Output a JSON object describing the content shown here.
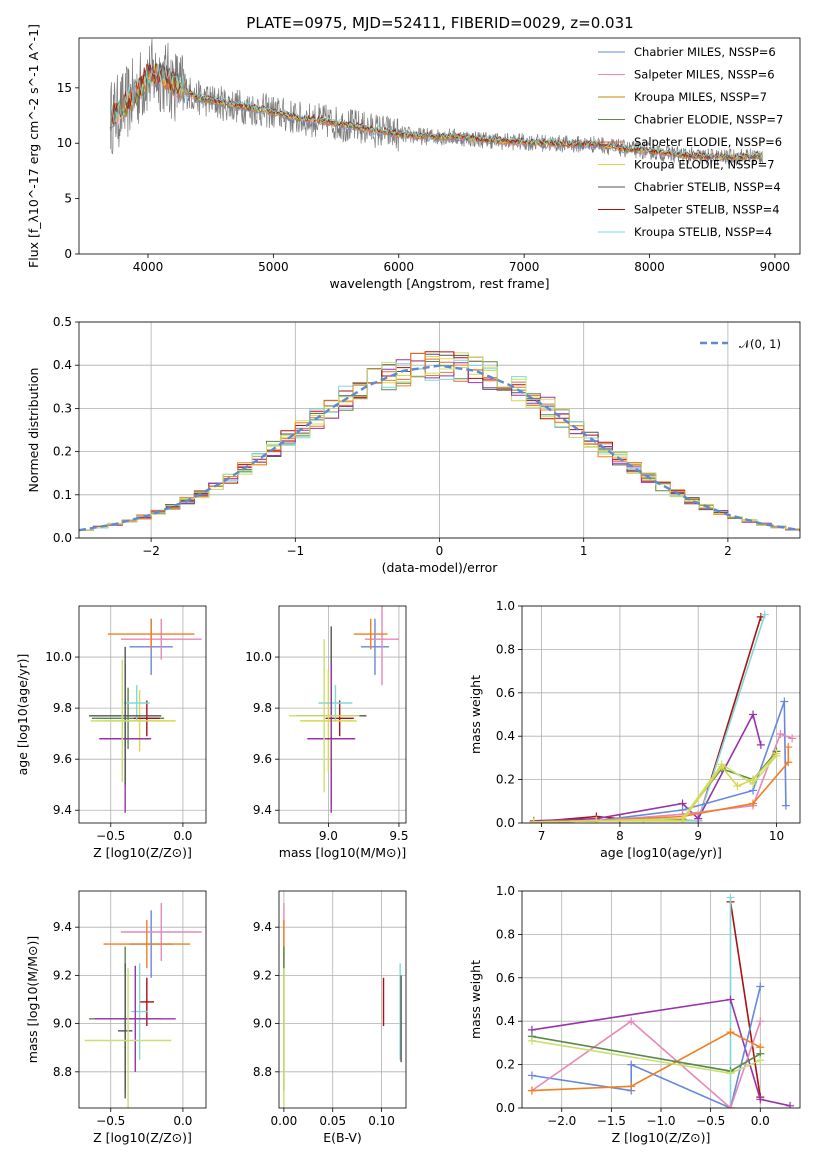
{
  "figure": {
    "title": "PLATE=0975, MJD=52411, FIBERID=0029, z=0.031"
  },
  "colors": [
    "#6688dd",
    "#e688b8",
    "#c8860d",
    "#5a8a4a",
    "#e06a3a",
    "#d8d84a",
    "#555555",
    "#aa1111",
    "#80d8d8",
    "#9933aa",
    "#f07f20",
    "#c8e070"
  ],
  "chart_data": [
    {
      "type": "line",
      "title": "PLATE=0975, MJD=52411, FIBERID=0029, z=0.031",
      "xlabel": "wavelength [Angstrom, rest frame]",
      "ylabel": "Flux [f_λ10^-17 erg cm^-2 s^-1 A^-1]",
      "xlim": [
        3450,
        9200
      ],
      "ylim": [
        0,
        19.5
      ],
      "xticks": [
        4000,
        5000,
        6000,
        7000,
        8000,
        9000
      ],
      "yticks": [
        0,
        5,
        10,
        15
      ],
      "grid": false,
      "legend_position": "top-right",
      "observed_spectrum": [
        [
          3700,
          12.3
        ],
        [
          3800,
          13.2
        ],
        [
          3900,
          14.5
        ],
        [
          4000,
          16.0
        ],
        [
          4100,
          16.2
        ],
        [
          4200,
          15.4
        ],
        [
          4400,
          14.1
        ],
        [
          4600,
          13.6
        ],
        [
          4800,
          13.2
        ],
        [
          5000,
          12.8
        ],
        [
          5200,
          12.2
        ],
        [
          5400,
          12.0
        ],
        [
          5600,
          11.6
        ],
        [
          5800,
          11.2
        ],
        [
          6000,
          10.8
        ],
        [
          6200,
          10.6
        ],
        [
          6400,
          10.6
        ],
        [
          6600,
          10.4
        ],
        [
          6800,
          10.2
        ],
        [
          7000,
          10.1
        ],
        [
          7200,
          10.0
        ],
        [
          7400,
          9.9
        ],
        [
          7600,
          9.9
        ],
        [
          7800,
          9.5
        ],
        [
          8000,
          9.3
        ],
        [
          8200,
          9.0
        ],
        [
          8400,
          8.8
        ],
        [
          8600,
          8.7
        ],
        [
          8800,
          8.8
        ],
        [
          8900,
          8.9
        ]
      ],
      "series": [
        {
          "name": "Chabrier MILES, N_SSP=6",
          "color": "#6688dd"
        },
        {
          "name": "Salpeter MILES, N_SSP=6",
          "color": "#e688b8"
        },
        {
          "name": "Kroupa MILES, N_SSP=7",
          "color": "#c8860d"
        },
        {
          "name": "Chabrier ELODIE, N_SSP=7",
          "color": "#5a8a4a"
        },
        {
          "name": "Salpeter ELODIE, N_SSP=6",
          "color": "#e06a3a"
        },
        {
          "name": "Kroupa ELODIE, N_SSP=7",
          "color": "#d8d84a"
        },
        {
          "name": "Chabrier STELIB, N_SSP=4",
          "color": "#555555"
        },
        {
          "name": "Salpeter STELIB, N_SSP=4",
          "color": "#aa1111"
        },
        {
          "name": "Kroupa STELIB, N_SSP=4",
          "color": "#80d8d8"
        }
      ]
    },
    {
      "type": "line",
      "xlabel": "(data-model)/error",
      "ylabel": "Normed distribution",
      "xlim": [
        -2.5,
        2.5
      ],
      "ylim": [
        0,
        0.5
      ],
      "xticks": [
        -2,
        -1,
        0,
        1,
        2
      ],
      "yticks": [
        0.0,
        0.1,
        0.2,
        0.3,
        0.4,
        0.5
      ],
      "grid": true,
      "legend_position": "top-right",
      "series": [
        {
          "name": "𝒩(0, 1)",
          "color": "#5b8bd0",
          "style": "dashed",
          "x": [
            -2.5,
            -2.25,
            -2.0,
            -1.75,
            -1.5,
            -1.25,
            -1.0,
            -0.75,
            -0.5,
            -0.25,
            0.0,
            0.25,
            0.5,
            0.75,
            1.0,
            1.25,
            1.5,
            1.75,
            2.0,
            2.25,
            2.5
          ],
          "y": [
            0.018,
            0.032,
            0.054,
            0.086,
            0.13,
            0.183,
            0.242,
            0.301,
            0.352,
            0.387,
            0.399,
            0.387,
            0.352,
            0.301,
            0.242,
            0.183,
            0.13,
            0.086,
            0.054,
            0.032,
            0.018
          ]
        }
      ]
    },
    {
      "type": "scatter",
      "xlabel": "Z [log10(Z/Z⊙)]",
      "ylabel": "age  [log10(age/yr)]",
      "xlim": [
        -0.72,
        0.16
      ],
      "ylim": [
        9.35,
        10.2
      ],
      "xticks": [
        -0.5,
        0.0
      ],
      "xticklabels": [
        "−0.5",
        "0.0"
      ],
      "yticks": [
        9.4,
        9.6,
        9.8,
        10.0
      ],
      "grid": true,
      "points": [
        {
          "x": -0.22,
          "xerr": 0.15,
          "y": 10.04,
          "yerr": 0.11,
          "color": "#6688dd"
        },
        {
          "x": -0.15,
          "xerr": 0.28,
          "y": 10.07,
          "yerr": 0.08,
          "color": "#e688b8"
        },
        {
          "x": -0.22,
          "xerr": 0.3,
          "y": 10.09,
          "yerr": 0.06,
          "color": "#f07f20"
        },
        {
          "x": -0.38,
          "xerr": 0.25,
          "y": 9.76,
          "yerr": 0.12,
          "color": "#5a8a4a"
        },
        {
          "x": -0.3,
          "xerr": 0.25,
          "y": 9.75,
          "yerr": 0.12,
          "color": "#d8d84a"
        },
        {
          "x": -0.25,
          "xerr": 0.09,
          "y": 9.76,
          "yerr": 0.07,
          "color": "#aa1111"
        },
        {
          "x": -0.32,
          "xerr": 0.09,
          "y": 9.82,
          "yerr": 0.07,
          "color": "#80d8d8"
        },
        {
          "x": -0.4,
          "xerr": 0.18,
          "y": 9.68,
          "yerr": 0.29,
          "color": "#9933aa"
        },
        {
          "x": -0.4,
          "xerr": 0.25,
          "y": 9.77,
          "yerr": 0.27,
          "color": "#555555"
        },
        {
          "x": -0.42,
          "xerr": 0.22,
          "y": 9.75,
          "yerr": 0.24,
          "color": "#c8e070"
        }
      ]
    },
    {
      "type": "scatter",
      "xlabel": "mass [log10(M/M⊙)]",
      "xlim": [
        8.65,
        9.55
      ],
      "ylim": [
        9.35,
        10.2
      ],
      "xticks": [
        9.0,
        9.5
      ],
      "yticks": [
        9.4,
        9.6,
        9.8,
        10.0
      ],
      "grid": true,
      "points": [
        {
          "x": 9.33,
          "xerr": 0.1,
          "y": 10.04,
          "yerr": 0.11,
          "color": "#6688dd"
        },
        {
          "x": 9.38,
          "xerr": 0.12,
          "y": 10.07,
          "yerr": 0.18,
          "color": "#e688b8"
        },
        {
          "x": 9.3,
          "xerr": 0.12,
          "y": 10.09,
          "yerr": 0.06,
          "color": "#f07f20"
        },
        {
          "x": 9.02,
          "xerr": 0.25,
          "y": 9.77,
          "yerr": 0.35,
          "color": "#555555"
        },
        {
          "x": 9.08,
          "xerr": 0.1,
          "y": 9.76,
          "yerr": 0.07,
          "color": "#aa1111"
        },
        {
          "x": 9.0,
          "xerr": 0.2,
          "y": 9.75,
          "yerr": 0.2,
          "color": "#d8d84a"
        },
        {
          "x": 9.05,
          "xerr": 0.12,
          "y": 9.82,
          "yerr": 0.07,
          "color": "#80d8d8"
        },
        {
          "x": 9.02,
          "xerr": 0.17,
          "y": 9.68,
          "yerr": 0.29,
          "color": "#9933aa"
        },
        {
          "x": 8.97,
          "xerr": 0.25,
          "y": 9.77,
          "yerr": 0.3,
          "color": "#c8e070"
        }
      ]
    },
    {
      "type": "line",
      "xlabel": "age  [log10(age/yr)]",
      "ylabel": "mass weight",
      "xlim": [
        6.75,
        10.3
      ],
      "ylim": [
        0.0,
        1.0
      ],
      "xticks": [
        7,
        8,
        9,
        10
      ],
      "yticks": [
        0.0,
        0.2,
        0.4,
        0.6,
        0.8,
        1.0
      ],
      "grid": true,
      "series": [
        {
          "color": "#aa1111",
          "x": [
            6.9,
            7.7,
            8.0,
            9.0,
            9.8
          ],
          "y": [
            0.005,
            0.03,
            0.02,
            0.01,
            0.95
          ]
        },
        {
          "color": "#80d8d8",
          "x": [
            6.9,
            7.7,
            8.3,
            9.0,
            9.85
          ],
          "y": [
            0.005,
            0.01,
            0.01,
            0.01,
            0.96
          ]
        },
        {
          "color": "#9933aa",
          "x": [
            6.9,
            7.7,
            8.8,
            9.0,
            9.7,
            9.8
          ],
          "y": [
            0.01,
            0.02,
            0.09,
            0.02,
            0.5,
            0.36
          ]
        },
        {
          "color": "#6688dd",
          "x": [
            6.9,
            7.7,
            8.8,
            9.7,
            10.1,
            10.12
          ],
          "y": [
            0.005,
            0.01,
            0.06,
            0.15,
            0.56,
            0.08
          ]
        },
        {
          "color": "#e688b8",
          "x": [
            6.9,
            7.7,
            8.8,
            9.7,
            10.05,
            10.2
          ],
          "y": [
            0.005,
            0.01,
            0.04,
            0.08,
            0.41,
            0.39
          ]
        },
        {
          "color": "#f07f20",
          "x": [
            6.9,
            7.7,
            8.8,
            9.7,
            10.15,
            10.15
          ],
          "y": [
            0.005,
            0.01,
            0.03,
            0.09,
            0.28,
            0.35
          ]
        },
        {
          "color": "#5a8a4a",
          "x": [
            6.9,
            7.7,
            8.8,
            9.3,
            9.7,
            10.0
          ],
          "y": [
            0.005,
            0.01,
            0.02,
            0.25,
            0.2,
            0.33
          ]
        },
        {
          "color": "#c8e070",
          "x": [
            6.9,
            7.7,
            8.8,
            9.3,
            9.7,
            10.0
          ],
          "y": [
            0.005,
            0.01,
            0.02,
            0.27,
            0.18,
            0.31
          ]
        },
        {
          "color": "#d8d84a",
          "x": [
            6.9,
            7.7,
            8.8,
            9.3,
            9.5,
            9.7,
            10.0
          ],
          "y": [
            0.005,
            0.01,
            0.01,
            0.26,
            0.17,
            0.2,
            0.32
          ]
        }
      ]
    },
    {
      "type": "scatter",
      "xlabel": "Z [log10(Z/Z⊙)]",
      "ylabel": "mass [log10(M/M⊙)]",
      "xlim": [
        -0.72,
        0.16
      ],
      "ylim": [
        8.65,
        9.55
      ],
      "xticks": [
        -0.5,
        0.0
      ],
      "xticklabels": [
        "−0.5",
        "0.0"
      ],
      "yticks": [
        8.8,
        9.0,
        9.2,
        9.4
      ],
      "grid": true,
      "points": [
        {
          "x": -0.22,
          "xerr": 0.15,
          "y": 9.33,
          "yerr": 0.14,
          "color": "#6688dd"
        },
        {
          "x": -0.15,
          "xerr": 0.28,
          "y": 9.38,
          "yerr": 0.12,
          "color": "#e688b8"
        },
        {
          "x": -0.25,
          "xerr": 0.3,
          "y": 9.33,
          "yerr": 0.1,
          "color": "#f07f20"
        },
        {
          "x": -0.4,
          "xerr": 0.25,
          "y": 9.02,
          "yerr": 0.3,
          "color": "#5a8a4a"
        },
        {
          "x": -0.25,
          "xerr": 0.05,
          "y": 9.09,
          "yerr": 0.1,
          "color": "#aa1111"
        },
        {
          "x": -0.3,
          "xerr": 0.06,
          "y": 9.05,
          "yerr": 0.2,
          "color": "#80d8d8"
        },
        {
          "x": -0.33,
          "xerr": 0.28,
          "y": 9.02,
          "yerr": 0.22,
          "color": "#9933aa"
        },
        {
          "x": -0.4,
          "xerr": 0.05,
          "y": 8.97,
          "yerr": 0.28,
          "color": "#555555"
        },
        {
          "x": -0.38,
          "xerr": 0.3,
          "y": 8.93,
          "yerr": 0.3,
          "color": "#c8e070"
        }
      ]
    },
    {
      "type": "scatter",
      "xlabel": "E(B-V)",
      "xlim": [
        -0.005,
        0.125
      ],
      "ylim": [
        8.65,
        9.55
      ],
      "xticks": [
        0.0,
        0.05,
        0.1
      ],
      "xticklabels": [
        "0.00",
        "0.05",
        "0.10"
      ],
      "yticks": [
        8.8,
        9.0,
        9.2,
        9.4
      ],
      "grid": true,
      "points": [
        {
          "x": 0.0,
          "y": 9.38,
          "yerr": 0.12,
          "color": "#e688b8"
        },
        {
          "x": 0.0,
          "y": 9.33,
          "yerr": 0.1,
          "color": "#f07f20"
        },
        {
          "x": 0.0,
          "y": 9.02,
          "yerr": 0.3,
          "color": "#5a8a4a"
        },
        {
          "x": 0.0,
          "y": 8.93,
          "yerr": 0.3,
          "color": "#c8e070"
        },
        {
          "x": 0.102,
          "y": 9.09,
          "yerr": 0.1,
          "color": "#aa1111"
        },
        {
          "x": 0.119,
          "y": 9.05,
          "yerr": 0.2,
          "color": "#80d8d8"
        },
        {
          "x": 0.12,
          "y": 9.02,
          "yerr": 0.18,
          "color": "#555555"
        }
      ]
    },
    {
      "type": "line",
      "xlabel": "Z [log10(Z/Z⊙)]",
      "ylabel": "mass weight",
      "xlim": [
        -2.4,
        0.4
      ],
      "ylim": [
        0.0,
        1.0
      ],
      "xticks": [
        -2.0,
        -1.5,
        -1.0,
        -0.5,
        0.0
      ],
      "xticklabels": [
        "−2.0",
        "−1.5",
        "−1.0",
        "−0.5",
        "0.0"
      ],
      "yticks": [
        0.0,
        0.2,
        0.4,
        0.6,
        0.8,
        1.0
      ],
      "grid": true,
      "series": [
        {
          "color": "#aa1111",
          "x": [
            -0.3,
            0.0
          ],
          "y": [
            0.95,
            0.05
          ]
        },
        {
          "color": "#80d8d8",
          "x": [
            -0.3,
            -0.3
          ],
          "y": [
            0.0,
            0.97
          ]
        },
        {
          "color": "#9933aa",
          "x": [
            -2.3,
            -0.3,
            0.0,
            0.3
          ],
          "y": [
            0.36,
            0.5,
            0.04,
            0.01
          ]
        },
        {
          "color": "#6688dd",
          "x": [
            -2.3,
            -1.3,
            -1.3,
            -0.3,
            0.0
          ],
          "y": [
            0.15,
            0.08,
            0.2,
            0.0,
            0.56
          ]
        },
        {
          "color": "#e688b8",
          "x": [
            -2.3,
            -1.3,
            -0.3,
            0.0
          ],
          "y": [
            0.08,
            0.4,
            0.0,
            0.4
          ]
        },
        {
          "color": "#f07f20",
          "x": [
            -2.3,
            -1.3,
            -0.3,
            0.0
          ],
          "y": [
            0.08,
            0.1,
            0.35,
            0.28
          ]
        },
        {
          "color": "#5a8a4a",
          "x": [
            -2.3,
            -0.3,
            0.0
          ],
          "y": [
            0.33,
            0.17,
            0.25
          ]
        },
        {
          "color": "#c8e070",
          "x": [
            -2.3,
            -0.3,
            0.0
          ],
          "y": [
            0.31,
            0.16,
            0.22
          ]
        }
      ]
    }
  ]
}
